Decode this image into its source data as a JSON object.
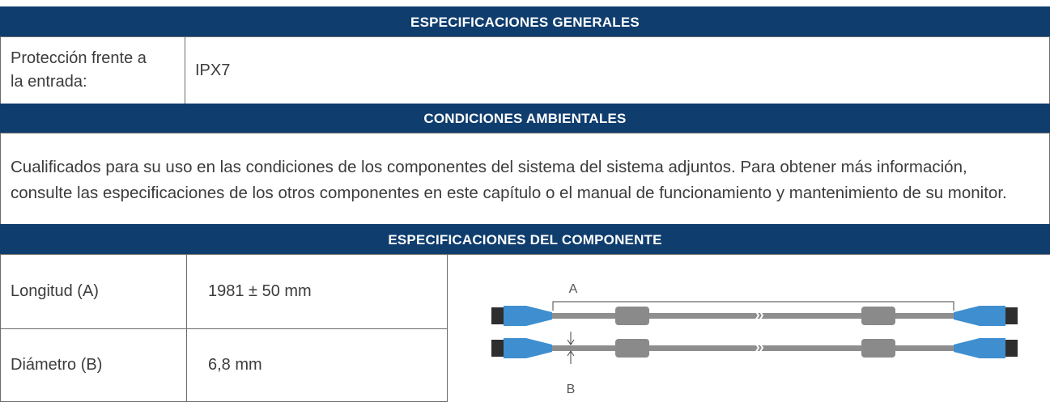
{
  "general": {
    "header": "ESPECIFICACIONES GENERALES",
    "label": "Protección frente a la entrada:",
    "value": "IPX7"
  },
  "environmental": {
    "header": "CONDICIONES AMBIENTALES",
    "text": "Cualificados para su uso en las condiciones de los componentes del sistema del sistema adjuntos. Para obtener más información, consulte las especificaciones de los otros componentes en este capítulo o el manual de funcionamiento y mantenimiento de su monitor."
  },
  "component": {
    "header": "ESPECIFICACIONES DEL COMPONENTE",
    "rows": [
      [
        "Longitud (A)",
        "1981 ± 50 mm"
      ],
      [
        "Diámetro (B)",
        "6,8 mm"
      ]
    ],
    "diagram_labels": [
      "A",
      "B"
    ]
  }
}
